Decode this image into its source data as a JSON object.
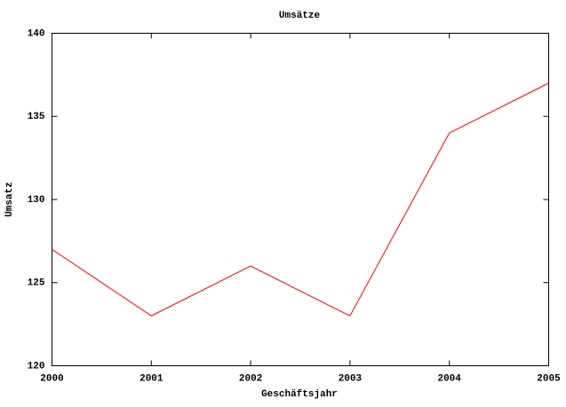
{
  "chart_data": {
    "type": "line",
    "title": "Umsätze",
    "x_label": "Geschäftsjahr",
    "y_label": "Umsatz",
    "x": [
      2000,
      2001,
      2002,
      2003,
      2004,
      2005
    ],
    "series": [
      {
        "color": "#ff0000",
        "values": [
          127,
          123,
          126,
          123,
          134,
          137
        ]
      }
    ],
    "xlim": [
      2000,
      2005
    ],
    "xticks": [
      2000,
      2001,
      2002,
      2003,
      2004,
      2005
    ],
    "ylim": [
      120,
      140
    ],
    "yticks": [
      120,
      125,
      130,
      135,
      140
    ],
    "grid": false
  }
}
